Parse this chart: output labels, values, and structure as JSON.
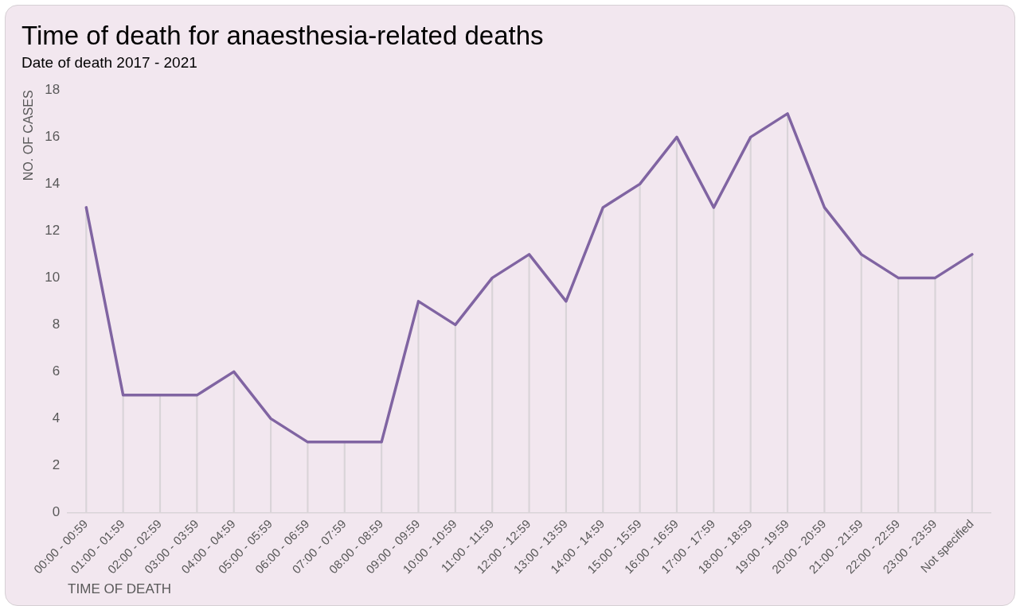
{
  "chart_data": {
    "type": "line",
    "title": "Time of death for anaesthesia-related deaths",
    "subtitle": "Date of death 2017 - 2021",
    "xlabel": "TIME OF DEATH",
    "ylabel": "NO. OF CASES",
    "categories": [
      "00:00 - 00:59",
      "01:00 - 01:59",
      "02:00 - 02:59",
      "03:00 - 03:59",
      "04:00 - 04:59",
      "05:00 - 05:59",
      "06:00 - 06:59",
      "07:00 - 07:59",
      "08:00 - 08:59",
      "09:00 - 09:59",
      "10:00 - 10:59",
      "11:00 - 11:59",
      "12:00 - 12:59",
      "13:00 - 13:59",
      "14:00 - 14:59",
      "15:00 - 15:59",
      "16:00 - 16:59",
      "17:00 - 17:59",
      "18:00 - 18:59",
      "19:00 - 19:59",
      "20:00 - 20:59",
      "21:00 - 21:59",
      "22:00 - 22:59",
      "23:00 - 23:59",
      "Not specified"
    ],
    "series": [
      {
        "type": "bar",
        "color": "#d9d4d8",
        "values": [
          13,
          5,
          5,
          5,
          6,
          4,
          3,
          3,
          3,
          9,
          8,
          10,
          11,
          9,
          13,
          14,
          16,
          13,
          16,
          17,
          13,
          11,
          10,
          10,
          11
        ]
      },
      {
        "color": "#8064a2",
        "values": [
          13,
          5,
          5,
          5,
          6,
          4,
          3,
          3,
          3,
          9,
          8,
          10,
          11,
          9,
          13,
          14,
          16,
          13,
          16,
          17,
          13,
          11,
          10,
          10,
          11
        ]
      }
    ],
    "ylim": [
      0,
      18
    ],
    "yticks": [
      0,
      2,
      4,
      6,
      8,
      10,
      12,
      14,
      16,
      18
    ],
    "grid": false,
    "legend": false,
    "marker": "none",
    "line_style": "solid"
  }
}
